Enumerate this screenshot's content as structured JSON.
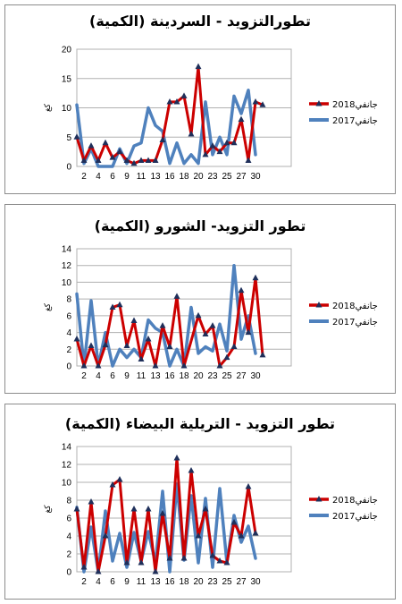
{
  "chart_data": [
    {
      "type": "line",
      "title": "تطورالتزويد - السردينة (الكمية)",
      "ylabel": "كغ",
      "ylim": [
        0,
        20
      ],
      "yticks": [
        0,
        5,
        10,
        15,
        20
      ],
      "xticklabels": [
        "2",
        "4",
        "6",
        "9",
        "11",
        "13",
        "16",
        "18",
        "20",
        "23",
        "25",
        "27",
        "30"
      ],
      "x": [
        "1",
        "2",
        "3",
        "4",
        "5",
        "6",
        "7",
        "8",
        "9",
        "10",
        "11",
        "12",
        "13",
        "14",
        "15",
        "16",
        "17",
        "18",
        "19",
        "20",
        "21",
        "22",
        "23",
        "24",
        "25",
        "26",
        "27",
        "28",
        "29",
        "30",
        "31"
      ],
      "series": [
        {
          "name": "جانفي2018",
          "color": "#cc0000",
          "values": [
            5.0,
            1.0,
            3.5,
            1.0,
            4.0,
            1.5,
            2.5,
            1.0,
            0.5,
            1.0,
            1.0,
            1.0,
            4.5,
            11.0,
            11.0,
            12.0,
            5.5,
            17.0,
            2.0,
            3.5,
            2.5,
            4.0,
            4.0,
            8.0,
            1.0,
            11.0,
            10.5,
            null,
            null,
            null,
            null
          ]
        },
        {
          "name": "جانفي2017",
          "color": "#4f81bd",
          "values": [
            10.5,
            0.5,
            3.0,
            0.0,
            0.0,
            0.0,
            3.0,
            0.5,
            3.5,
            4.0,
            10.0,
            7.0,
            6.0,
            0.5,
            4.0,
            0.5,
            2.0,
            0.5,
            11.0,
            2.0,
            5.0,
            2.0,
            12.0,
            9.0,
            13.0,
            2.0,
            null,
            null,
            null,
            null,
            null
          ]
        }
      ],
      "legend": "right"
    },
    {
      "type": "line",
      "title": "تطور التزويد- الشورو (الكمية)",
      "ylabel": "كغ",
      "ylim": [
        0,
        14
      ],
      "yticks": [
        0,
        2,
        4,
        6,
        8,
        10,
        12,
        14
      ],
      "xticklabels": [
        "2",
        "4",
        "6",
        "9",
        "11",
        "13",
        "16",
        "18",
        "20",
        "23",
        "25",
        "27",
        "30"
      ],
      "x": [
        "1",
        "2",
        "3",
        "4",
        "5",
        "6",
        "7",
        "8",
        "9",
        "10",
        "11",
        "12",
        "13",
        "14",
        "15",
        "16",
        "17",
        "18",
        "19",
        "20",
        "21",
        "22",
        "23",
        "24",
        "25",
        "26",
        "27",
        "28",
        "29",
        "30",
        "31"
      ],
      "series": [
        {
          "name": "جانفي2018",
          "color": "#cc0000",
          "values": [
            3.2,
            0.0,
            2.4,
            0.0,
            2.5,
            7.0,
            7.3,
            2.4,
            5.4,
            0.8,
            3.2,
            0.0,
            4.8,
            2.3,
            8.3,
            0.0,
            null,
            6.0,
            3.8,
            4.8,
            0.0,
            1.0,
            2.3,
            9.0,
            4.0,
            10.5,
            1.3,
            null,
            null,
            null,
            null
          ]
        },
        {
          "name": "جانفي2017",
          "color": "#4f81bd",
          "values": [
            8.6,
            0.0,
            7.8,
            0.0,
            4.0,
            0.0,
            2.0,
            1.0,
            2.0,
            1.0,
            5.5,
            4.5,
            4.0,
            0.0,
            2.0,
            0.0,
            7.0,
            1.5,
            2.3,
            1.8,
            5.0,
            1.8,
            12.0,
            3.2,
            6.0,
            1.5,
            null,
            null,
            null,
            null,
            null
          ]
        }
      ],
      "legend": "right"
    },
    {
      "type": "line",
      "title": "تطور التزويد - التريلية البيضاء (الكمية)",
      "ylabel": "كغ",
      "ylim": [
        0,
        14
      ],
      "yticks": [
        0,
        2,
        4,
        6,
        8,
        10,
        12,
        14
      ],
      "xticklabels": [
        "2",
        "4",
        "6",
        "9",
        "11",
        "13",
        "16",
        "18",
        "20",
        "23",
        "25",
        "27",
        "30"
      ],
      "x": [
        "1",
        "2",
        "3",
        "4",
        "5",
        "6",
        "7",
        "8",
        "9",
        "10",
        "11",
        "12",
        "13",
        "14",
        "15",
        "16",
        "17",
        "18",
        "19",
        "20",
        "21",
        "22",
        "23",
        "24",
        "25",
        "26",
        "27",
        "28",
        "29",
        "30",
        "31"
      ],
      "series": [
        {
          "name": "جانفي2018",
          "color": "#cc0000",
          "values": [
            7.0,
            0.5,
            7.8,
            0.0,
            4.0,
            9.7,
            10.3,
            1.0,
            7.0,
            1.0,
            7.0,
            0.0,
            6.5,
            1.5,
            12.7,
            1.5,
            11.3,
            4.0,
            7.0,
            1.8,
            1.2,
            1.0,
            5.5,
            4.0,
            9.5,
            4.3,
            null,
            null,
            null,
            null,
            null
          ]
        },
        {
          "name": "جانفي2017",
          "color": "#4f81bd",
          "values": [
            7.2,
            0.0,
            5.0,
            0.0,
            6.8,
            1.2,
            4.3,
            0.5,
            4.4,
            1.2,
            4.5,
            1.0,
            9.0,
            0.0,
            9.8,
            1.3,
            8.5,
            1.0,
            8.2,
            0.5,
            9.3,
            1.0,
            6.3,
            3.3,
            5.1,
            1.5,
            null,
            null,
            null,
            null,
            null
          ]
        }
      ],
      "legend": "right"
    }
  ]
}
